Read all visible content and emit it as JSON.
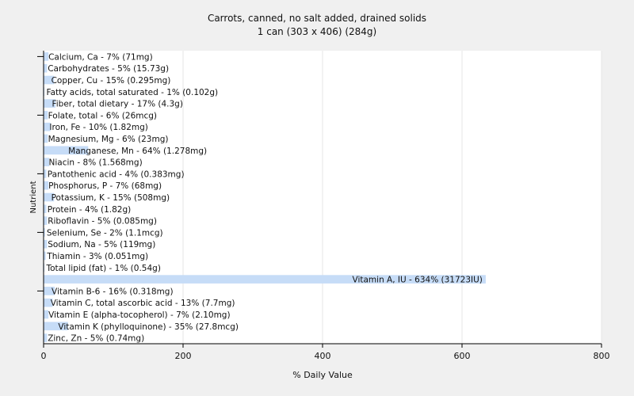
{
  "chart_data": {
    "type": "bar",
    "orientation": "horizontal",
    "title": "Carrots, canned, no salt added, drained solids",
    "subtitle": "1 can (303 x 406) (284g)",
    "xlabel": "% Daily Value",
    "ylabel": "Nutrient",
    "xlim": [
      0,
      800
    ],
    "xticks": [
      0,
      200,
      400,
      600,
      800
    ],
    "grid": true,
    "legend": "none",
    "colors": {
      "bar": "#c6dcf7",
      "background": "#f0f0f0",
      "plot_background": "#ffffff",
      "grid": "#e6e6e6",
      "axis": "#000000"
    },
    "categories": [
      "Calcium, Ca",
      "Carbohydrates",
      "Copper, Cu",
      "Fatty acids, total saturated",
      "Fiber, total dietary",
      "Folate, total",
      "Iron, Fe",
      "Magnesium, Mg",
      "Manganese, Mn",
      "Niacin",
      "Pantothenic acid",
      "Phosphorus, P",
      "Potassium, K",
      "Protein",
      "Riboflavin",
      "Selenium, Se",
      "Sodium, Na",
      "Thiamin",
      "Total lipid (fat)",
      "Vitamin A, IU",
      "Vitamin B-6",
      "Vitamin C, total ascorbic acid",
      "Vitamin E (alpha-tocopherol)",
      "Vitamin K (phylloquinone)",
      "Zinc, Zn"
    ],
    "values": [
      7,
      5,
      15,
      1,
      17,
      6,
      10,
      6,
      64,
      8,
      4,
      7,
      15,
      4,
      5,
      2,
      5,
      3,
      1,
      634,
      16,
      13,
      7,
      35,
      5
    ],
    "labels": [
      "Calcium, Ca - 7% (71mg)",
      "Carbohydrates - 5% (15.73g)",
      "Copper, Cu - 15% (0.295mg)",
      "Fatty acids, total saturated - 1% (0.102g)",
      "Fiber, total dietary - 17% (4.3g)",
      "Folate, total - 6% (26mcg)",
      "Iron, Fe - 10% (1.82mg)",
      "Magnesium, Mg - 6% (23mg)",
      "Manganese, Mn - 64% (1.278mg)",
      "Niacin - 8% (1.568mg)",
      "Pantothenic acid - 4% (0.383mg)",
      "Phosphorus, P - 7% (68mg)",
      "Potassium, K - 15% (508mg)",
      "Protein - 4% (1.82g)",
      "Riboflavin - 5% (0.085mg)",
      "Selenium, Se - 2% (1.1mcg)",
      "Sodium, Na - 5% (119mg)",
      "Thiamin - 3% (0.051mg)",
      "Total lipid (fat) - 1% (0.54g)",
      "Vitamin A, IU - 634% (31723IU)",
      "Vitamin B-6 - 16% (0.318mg)",
      "Vitamin C, total ascorbic acid - 13% (7.7mg)",
      "Vitamin E (alpha-tocopherol) - 7% (2.10mg)",
      "Vitamin K (phylloquinone) - 35% (27.8mcg)",
      "Zinc, Zn - 5% (0.74mg)"
    ]
  }
}
